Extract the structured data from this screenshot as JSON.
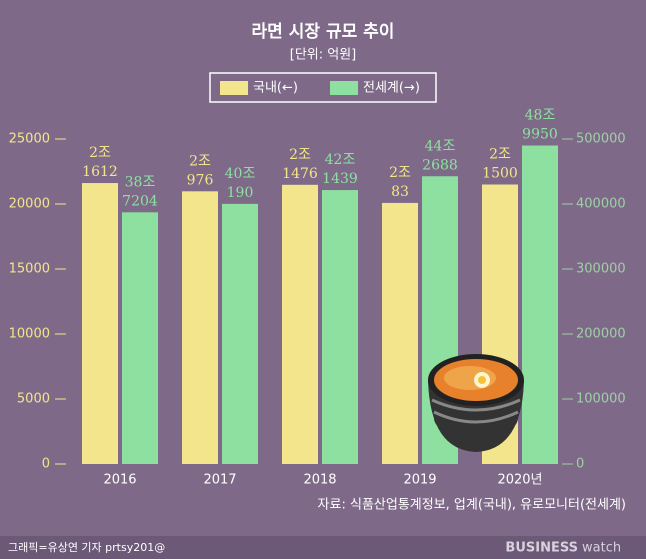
{
  "chart_data": {
    "type": "bar",
    "title": "라면 시장 규모 추이",
    "subtitle": "[단위: 억원]",
    "categories": [
      "2016",
      "2017",
      "2018",
      "2019",
      "2020년"
    ],
    "series": [
      {
        "name": "국내(←)",
        "color": "#f3e58b",
        "values": [
          21612,
          20976,
          21476,
          20083,
          21500
        ],
        "value_labels": [
          [
            "2조",
            "1612"
          ],
          [
            "2조",
            "976"
          ],
          [
            "2조",
            "1476"
          ],
          [
            "2조",
            "83"
          ],
          [
            "2조",
            "1500"
          ]
        ]
      },
      {
        "name": "전세계(→)",
        "color": "#8de0a0",
        "axis": "y2",
        "values": [
          387204,
          400190,
          421439,
          442688,
          489950
        ],
        "value_labels": [
          [
            "38조",
            "7204"
          ],
          [
            "40조",
            "190"
          ],
          [
            "42조",
            "1439"
          ],
          [
            "44조",
            "2688"
          ],
          [
            "48조",
            "9950"
          ]
        ]
      }
    ],
    "ylim": [
      0,
      25000
    ],
    "yticks": [
      0,
      5000,
      10000,
      15000,
      20000,
      25000
    ],
    "y2lim": [
      0,
      500000
    ],
    "y2ticks": [
      0,
      100000,
      200000,
      300000,
      400000,
      500000
    ],
    "legend": "top",
    "source": "자료: 식품산업통계정보, 업계(국내), 유로모니터(전세계)",
    "credit": "그래픽=유상연 기자 prtsy201@",
    "logo": [
      "BUSINESS",
      "watch"
    ]
  }
}
